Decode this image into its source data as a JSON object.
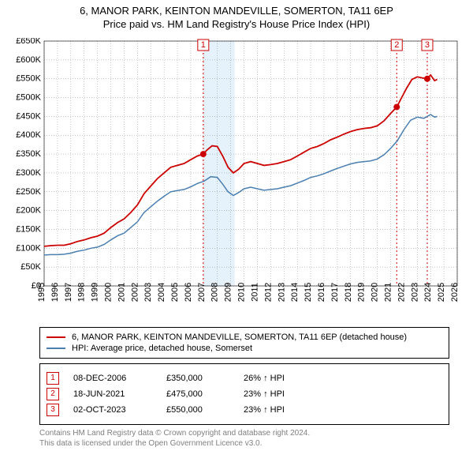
{
  "title_line1": "6, MANOR PARK, KEINTON MANDEVILLE, SOMERTON, TA11 6EP",
  "title_line2": "Price paid vs. HM Land Registry's House Price Index (HPI)",
  "chart": {
    "type": "line",
    "background_color": "#ffffff",
    "grid_color": "#707070",
    "xlim": [
      1995,
      2026
    ],
    "ylim": [
      0,
      650000
    ],
    "ytick_step": 50000,
    "ytick_prefix": "£",
    "ytick_labels": [
      "£0",
      "£50K",
      "£100K",
      "£150K",
      "£200K",
      "£250K",
      "£300K",
      "£350K",
      "£400K",
      "£450K",
      "£500K",
      "£550K",
      "£600K",
      "£650K"
    ],
    "xtick_step": 1,
    "xtick_labels": [
      "1995",
      "1996",
      "1997",
      "1998",
      "1999",
      "2000",
      "2001",
      "2002",
      "2003",
      "2004",
      "2005",
      "2006",
      "2007",
      "2008",
      "2009",
      "2010",
      "2011",
      "2012",
      "2013",
      "2014",
      "2015",
      "2016",
      "2017",
      "2018",
      "2019",
      "2020",
      "2021",
      "2022",
      "2023",
      "2024",
      "2025",
      "2026"
    ],
    "shaded_band": {
      "x_start": 2007.0,
      "x_end": 2009.3,
      "color": "#d6e9f8",
      "opacity": 0.6
    },
    "series1": {
      "name": "6, MANOR PARK, KEINTON MANDEVILLE, SOMERTON, TA11 6EP (detached house)",
      "color": "#cc0000",
      "line_width": 1.8,
      "data": [
        [
          1995.0,
          105000
        ],
        [
          1995.5,
          107000
        ],
        [
          1996.0,
          108000
        ],
        [
          1996.5,
          108000
        ],
        [
          1997.0,
          112000
        ],
        [
          1997.5,
          118000
        ],
        [
          1998.0,
          122000
        ],
        [
          1998.5,
          128000
        ],
        [
          1999.0,
          132000
        ],
        [
          1999.5,
          140000
        ],
        [
          2000.0,
          155000
        ],
        [
          2000.5,
          168000
        ],
        [
          2001.0,
          178000
        ],
        [
          2001.5,
          195000
        ],
        [
          2002.0,
          215000
        ],
        [
          2002.5,
          245000
        ],
        [
          2003.0,
          265000
        ],
        [
          2003.5,
          285000
        ],
        [
          2004.0,
          300000
        ],
        [
          2004.5,
          315000
        ],
        [
          2005.0,
          320000
        ],
        [
          2005.5,
          325000
        ],
        [
          2006.0,
          335000
        ],
        [
          2006.5,
          345000
        ],
        [
          2006.94,
          350000
        ],
        [
          2007.2,
          360000
        ],
        [
          2007.6,
          372000
        ],
        [
          2008.0,
          370000
        ],
        [
          2008.4,
          345000
        ],
        [
          2008.8,
          315000
        ],
        [
          2009.2,
          300000
        ],
        [
          2009.6,
          310000
        ],
        [
          2010.0,
          325000
        ],
        [
          2010.5,
          330000
        ],
        [
          2011.0,
          325000
        ],
        [
          2011.5,
          320000
        ],
        [
          2012.0,
          322000
        ],
        [
          2012.5,
          325000
        ],
        [
          2013.0,
          330000
        ],
        [
          2013.5,
          335000
        ],
        [
          2014.0,
          345000
        ],
        [
          2014.5,
          355000
        ],
        [
          2015.0,
          365000
        ],
        [
          2015.5,
          370000
        ],
        [
          2016.0,
          378000
        ],
        [
          2016.5,
          388000
        ],
        [
          2017.0,
          395000
        ],
        [
          2017.5,
          403000
        ],
        [
          2018.0,
          410000
        ],
        [
          2018.5,
          415000
        ],
        [
          2019.0,
          418000
        ],
        [
          2019.5,
          420000
        ],
        [
          2020.0,
          425000
        ],
        [
          2020.5,
          438000
        ],
        [
          2021.0,
          458000
        ],
        [
          2021.46,
          475000
        ],
        [
          2021.8,
          498000
        ],
        [
          2022.2,
          525000
        ],
        [
          2022.6,
          548000
        ],
        [
          2023.0,
          555000
        ],
        [
          2023.4,
          552000
        ],
        [
          2023.75,
          550000
        ],
        [
          2024.0,
          560000
        ],
        [
          2024.3,
          545000
        ],
        [
          2024.5,
          548000
        ]
      ]
    },
    "series2": {
      "name": "HPI: Average price, detached house, Somerset",
      "color": "#4a7fb0",
      "line_width": 1.5,
      "data": [
        [
          1995.0,
          82000
        ],
        [
          1995.5,
          83000
        ],
        [
          1996.0,
          83000
        ],
        [
          1996.5,
          84000
        ],
        [
          1997.0,
          87000
        ],
        [
          1997.5,
          92000
        ],
        [
          1998.0,
          95000
        ],
        [
          1998.5,
          100000
        ],
        [
          1999.0,
          103000
        ],
        [
          1999.5,
          110000
        ],
        [
          2000.0,
          122000
        ],
        [
          2000.5,
          133000
        ],
        [
          2001.0,
          140000
        ],
        [
          2001.5,
          155000
        ],
        [
          2002.0,
          170000
        ],
        [
          2002.5,
          195000
        ],
        [
          2003.0,
          210000
        ],
        [
          2003.5,
          225000
        ],
        [
          2004.0,
          238000
        ],
        [
          2004.5,
          250000
        ],
        [
          2005.0,
          253000
        ],
        [
          2005.5,
          256000
        ],
        [
          2006.0,
          263000
        ],
        [
          2006.5,
          272000
        ],
        [
          2007.0,
          278000
        ],
        [
          2007.5,
          290000
        ],
        [
          2008.0,
          288000
        ],
        [
          2008.4,
          270000
        ],
        [
          2008.8,
          250000
        ],
        [
          2009.2,
          240000
        ],
        [
          2009.6,
          248000
        ],
        [
          2010.0,
          258000
        ],
        [
          2010.5,
          262000
        ],
        [
          2011.0,
          258000
        ],
        [
          2011.5,
          254000
        ],
        [
          2012.0,
          256000
        ],
        [
          2012.5,
          258000
        ],
        [
          2013.0,
          262000
        ],
        [
          2013.5,
          266000
        ],
        [
          2014.0,
          273000
        ],
        [
          2014.5,
          280000
        ],
        [
          2015.0,
          288000
        ],
        [
          2015.5,
          292000
        ],
        [
          2016.0,
          298000
        ],
        [
          2016.5,
          305000
        ],
        [
          2017.0,
          312000
        ],
        [
          2017.5,
          318000
        ],
        [
          2018.0,
          324000
        ],
        [
          2018.5,
          328000
        ],
        [
          2019.0,
          330000
        ],
        [
          2019.5,
          332000
        ],
        [
          2020.0,
          337000
        ],
        [
          2020.5,
          348000
        ],
        [
          2021.0,
          365000
        ],
        [
          2021.5,
          385000
        ],
        [
          2022.0,
          415000
        ],
        [
          2022.5,
          440000
        ],
        [
          2023.0,
          448000
        ],
        [
          2023.5,
          445000
        ],
        [
          2024.0,
          455000
        ],
        [
          2024.3,
          448000
        ],
        [
          2024.5,
          450000
        ]
      ]
    },
    "markers": [
      {
        "n": "1",
        "x": 2006.94,
        "y": 350000
      },
      {
        "n": "2",
        "x": 2021.46,
        "y": 475000
      },
      {
        "n": "3",
        "x": 2023.75,
        "y": 550000
      }
    ]
  },
  "legend": {
    "item1": "6, MANOR PARK, KEINTON MANDEVILLE, SOMERTON, TA11 6EP (detached house)",
    "item2": "HPI: Average price, detached house, Somerset"
  },
  "events": [
    {
      "n": "1",
      "date": "08-DEC-2006",
      "price": "£350,000",
      "hpi": "26% ↑ HPI"
    },
    {
      "n": "2",
      "date": "18-JUN-2021",
      "price": "£475,000",
      "hpi": "23% ↑ HPI"
    },
    {
      "n": "3",
      "date": "02-OCT-2023",
      "price": "£550,000",
      "hpi": "23% ↑ HPI"
    }
  ],
  "footer_line1": "Contains HM Land Registry data © Crown copyright and database right 2024.",
  "footer_line2": "This data is licensed under the Open Government Licence v3.0."
}
